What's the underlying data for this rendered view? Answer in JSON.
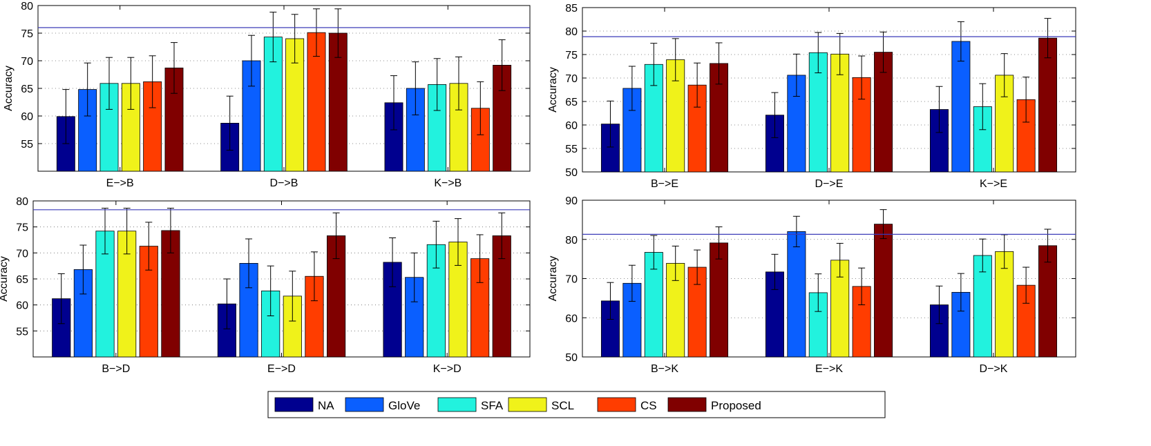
{
  "series_names": [
    "NA",
    "GloVe",
    "SFA",
    "SCL",
    "CS",
    "Proposed"
  ],
  "colors": {
    "NA": "#00008f",
    "GloVe": "#0a5fff",
    "SFA": "#22f2de",
    "SCL": "#f0f21a",
    "CS": "#ff3d00",
    "Proposed": "#800000",
    "reference_line": "#3a3ab8",
    "grid": "#666666"
  },
  "chart_data": [
    {
      "type": "bar",
      "panel": "top-left",
      "ylabel": "Accuracy",
      "ylim": [
        50,
        80
      ],
      "yticks": [
        55,
        60,
        65,
        70,
        75,
        80
      ],
      "grid": true,
      "reference_line": 76,
      "categories": [
        "E−>B",
        "D−>B",
        "K−>B"
      ],
      "series": [
        {
          "name": "NA",
          "values": [
            59.9,
            58.7,
            62.4
          ],
          "errors": [
            4.9,
            4.9,
            4.9
          ]
        },
        {
          "name": "GloVe",
          "values": [
            64.8,
            70.0,
            65.0
          ],
          "errors": [
            4.8,
            4.6,
            4.8
          ]
        },
        {
          "name": "SFA",
          "values": [
            65.9,
            74.3,
            65.7
          ],
          "errors": [
            4.7,
            4.5,
            4.7
          ]
        },
        {
          "name": "SCL",
          "values": [
            65.9,
            74.0,
            65.9
          ],
          "errors": [
            4.7,
            4.4,
            4.8
          ]
        },
        {
          "name": "CS",
          "values": [
            66.2,
            75.1,
            61.4
          ],
          "errors": [
            4.7,
            4.3,
            4.8
          ]
        },
        {
          "name": "Proposed",
          "values": [
            68.7,
            75.0,
            69.2
          ],
          "errors": [
            4.6,
            4.4,
            4.6
          ]
        }
      ]
    },
    {
      "type": "bar",
      "panel": "top-right",
      "ylabel": "Accuracy",
      "ylim": [
        50,
        85
      ],
      "yticks": [
        50,
        55,
        60,
        65,
        70,
        75,
        80,
        85
      ],
      "grid": true,
      "reference_line": 78.8,
      "categories": [
        "B−>E",
        "D−>E",
        "K−>E"
      ],
      "series": [
        {
          "name": "NA",
          "values": [
            60.2,
            62.1,
            63.3
          ],
          "errors": [
            4.9,
            4.8,
            4.9
          ]
        },
        {
          "name": "GloVe",
          "values": [
            67.8,
            70.6,
            77.8
          ],
          "errors": [
            4.7,
            4.5,
            4.2
          ]
        },
        {
          "name": "SFA",
          "values": [
            72.9,
            75.4,
            63.9
          ],
          "errors": [
            4.5,
            4.3,
            4.9
          ]
        },
        {
          "name": "SCL",
          "values": [
            73.9,
            75.1,
            70.6
          ],
          "errors": [
            4.5,
            4.4,
            4.6
          ]
        },
        {
          "name": "CS",
          "values": [
            68.5,
            70.1,
            65.4
          ],
          "errors": [
            4.7,
            4.6,
            4.8
          ]
        },
        {
          "name": "Proposed",
          "values": [
            73.1,
            75.5,
            78.5
          ],
          "errors": [
            4.4,
            4.3,
            4.2
          ]
        }
      ]
    },
    {
      "type": "bar",
      "panel": "bottom-left",
      "ylabel": "Accuracy",
      "ylim": [
        50,
        80
      ],
      "yticks": [
        55,
        60,
        65,
        70,
        75,
        80
      ],
      "grid": true,
      "reference_line": 78.3,
      "categories": [
        "B−>D",
        "E−>D",
        "K−>D"
      ],
      "series": [
        {
          "name": "NA",
          "values": [
            61.2,
            60.2,
            68.2
          ],
          "errors": [
            4.8,
            4.8,
            4.7
          ]
        },
        {
          "name": "GloVe",
          "values": [
            66.8,
            68.0,
            65.3
          ],
          "errors": [
            4.7,
            4.7,
            4.7
          ]
        },
        {
          "name": "SFA",
          "values": [
            74.2,
            62.7,
            71.6
          ],
          "errors": [
            4.4,
            4.8,
            4.5
          ]
        },
        {
          "name": "SCL",
          "values": [
            74.2,
            61.7,
            72.1
          ],
          "errors": [
            4.4,
            4.8,
            4.5
          ]
        },
        {
          "name": "CS",
          "values": [
            71.3,
            65.5,
            68.9
          ],
          "errors": [
            4.6,
            4.7,
            4.6
          ]
        },
        {
          "name": "Proposed",
          "values": [
            74.3,
            73.3,
            73.3
          ],
          "errors": [
            4.3,
            4.4,
            4.4
          ]
        }
      ]
    },
    {
      "type": "bar",
      "panel": "bottom-right",
      "ylabel": "Accuracy",
      "ylim": [
        50,
        90
      ],
      "yticks": [
        50,
        60,
        70,
        80,
        90
      ],
      "grid": true,
      "reference_line": 81.3,
      "categories": [
        "B−>K",
        "E−>K",
        "D−>K"
      ],
      "series": [
        {
          "name": "NA",
          "values": [
            64.3,
            71.7,
            63.3
          ],
          "errors": [
            4.7,
            4.5,
            4.8
          ]
        },
        {
          "name": "GloVe",
          "values": [
            68.8,
            82.0,
            66.5
          ],
          "errors": [
            4.6,
            3.9,
            4.8
          ]
        },
        {
          "name": "SFA",
          "values": [
            76.7,
            66.4,
            75.9
          ],
          "errors": [
            4.3,
            4.8,
            4.2
          ]
        },
        {
          "name": "SCL",
          "values": [
            73.9,
            74.7,
            76.9
          ],
          "errors": [
            4.4,
            4.3,
            4.3
          ]
        },
        {
          "name": "CS",
          "values": [
            72.9,
            68.0,
            68.3
          ],
          "errors": [
            4.4,
            4.7,
            4.6
          ]
        },
        {
          "name": "Proposed",
          "values": [
            79.1,
            83.9,
            78.4
          ],
          "errors": [
            4.1,
            3.7,
            4.2
          ]
        }
      ]
    }
  ]
}
